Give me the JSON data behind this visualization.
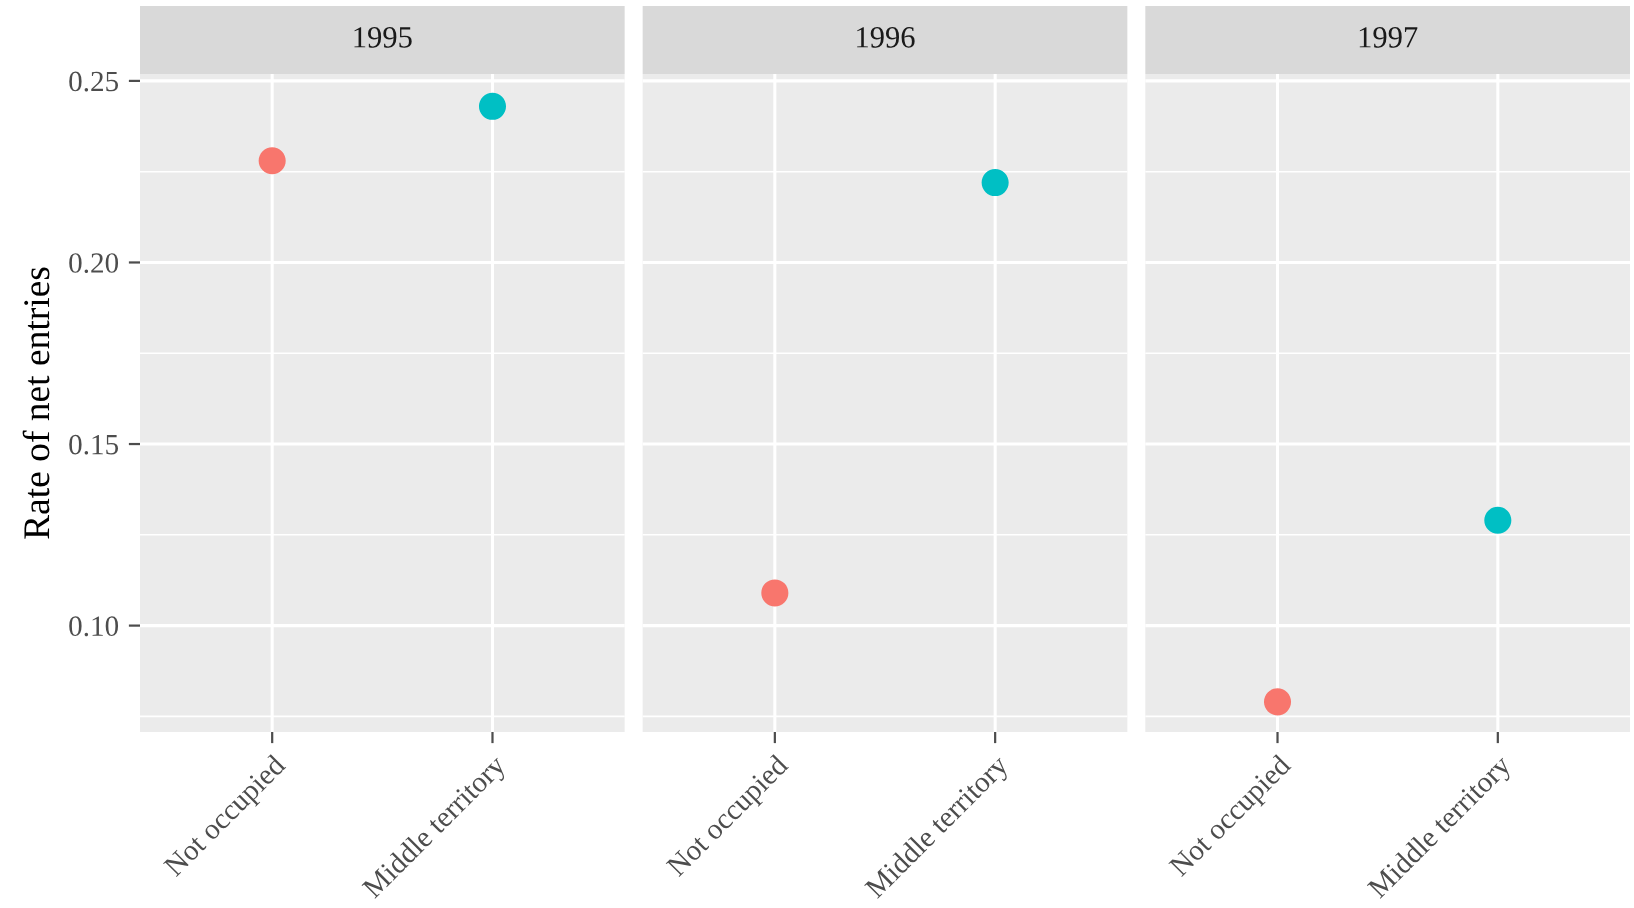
{
  "chart_data": [
    {
      "type": "scatter",
      "title": "1995",
      "ylabel": "Rate of net entries",
      "categories": [
        "Not occupied",
        "Middle territory"
      ],
      "values": [
        0.228,
        0.243
      ],
      "colors": [
        "#f8766d",
        "#00bfc4"
      ],
      "ylim": [
        0.0707,
        0.2519
      ],
      "yticks": [
        {
          "value": 0.075,
          "label": null
        },
        {
          "value": 0.1,
          "label": "0.10"
        },
        {
          "value": 0.125,
          "label": null
        },
        0.15,
        {
          "value": 0.175,
          "label": null
        },
        {
          "value": 0.2,
          "label": "0.20"
        },
        {
          "value": 0.225,
          "label": null
        },
        0.25
      ],
      "grid": true,
      "marker": "circle"
    },
    {
      "type": "scatter",
      "title": "1996",
      "categories": [
        "Not occupied",
        "Middle territory"
      ],
      "values": [
        0.109,
        0.222
      ],
      "colors": [
        "#f8766d",
        "#00bfc4"
      ],
      "ylim": [
        0.0707,
        0.2519
      ],
      "yticks": [
        {
          "value": 0.075,
          "label": null
        },
        0.1,
        {
          "value": 0.125,
          "label": null
        },
        0.15,
        {
          "value": 0.175,
          "label": null
        },
        0.2,
        {
          "value": 0.225,
          "label": null
        },
        0.25
      ],
      "grid": true,
      "marker": "circle",
      "tick_labels": "x"
    },
    {
      "type": "scatter",
      "title": "1997",
      "categories": [
        "Not occupied",
        "Middle territory"
      ],
      "values": [
        0.079,
        0.129
      ],
      "colors": [
        "#f8766d",
        "#00bfc4"
      ],
      "ylim": [
        0.0707,
        0.2519
      ],
      "yticks": [
        {
          "value": 0.075,
          "label": null
        },
        0.1,
        {
          "value": 0.125,
          "label": null
        },
        0.15,
        {
          "value": 0.175,
          "label": null
        },
        0.2,
        {
          "value": 0.225,
          "label": null
        },
        0.25
      ],
      "grid": true,
      "marker": "circle",
      "tick_labels": "x"
    }
  ]
}
